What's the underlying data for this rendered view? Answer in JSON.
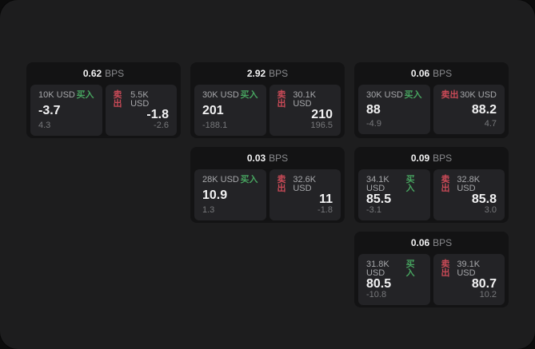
{
  "colors": {
    "outer_background": "#0c0c0c",
    "window_background": "#1d1d1e",
    "card_background": "#131314",
    "panel_background": "#232326",
    "primary_text": "#f2f2f3",
    "label_text": "#a6a7aa",
    "sub_text": "#77787b",
    "bps_unit_text": "#8a8b8e",
    "buy_accent": "#47a35f",
    "sell_accent": "#c94a57"
  },
  "labels": {
    "bps_unit": "BPS",
    "buy": "买入",
    "sell": "卖出"
  },
  "cards": [
    {
      "bps": "0.62",
      "buy": {
        "amount": "10K USD",
        "value": "-3.7",
        "sub": "4.3"
      },
      "sell": {
        "amount": "5.5K USD",
        "value": "-1.8",
        "sub": "-2.6"
      }
    },
    {
      "bps": "2.92",
      "buy": {
        "amount": "30K USD",
        "value": "201",
        "sub": "-188.1"
      },
      "sell": {
        "amount": "30.1K USD",
        "value": "210",
        "sub": "196.5"
      }
    },
    {
      "bps": "0.06",
      "buy": {
        "amount": "30K USD",
        "value": "88",
        "sub": "-4.9"
      },
      "sell": {
        "amount": "30K USD",
        "value": "88.2",
        "sub": "4.7"
      }
    },
    {
      "bps": "0.03",
      "buy": {
        "amount": "28K USD",
        "value": "10.9",
        "sub": "1.3"
      },
      "sell": {
        "amount": "32.6K USD",
        "value": "11",
        "sub": "-1.8"
      }
    },
    {
      "bps": "0.09",
      "buy": {
        "amount": "34.1K USD",
        "value": "85.5",
        "sub": "-3.1"
      },
      "sell": {
        "amount": "32.8K USD",
        "value": "85.8",
        "sub": "3.0"
      }
    },
    {
      "bps": "0.06",
      "buy": {
        "amount": "31.8K USD",
        "value": "80.5",
        "sub": "-10.8"
      },
      "sell": {
        "amount": "39.1K USD",
        "value": "80.7",
        "sub": "10.2"
      }
    }
  ]
}
